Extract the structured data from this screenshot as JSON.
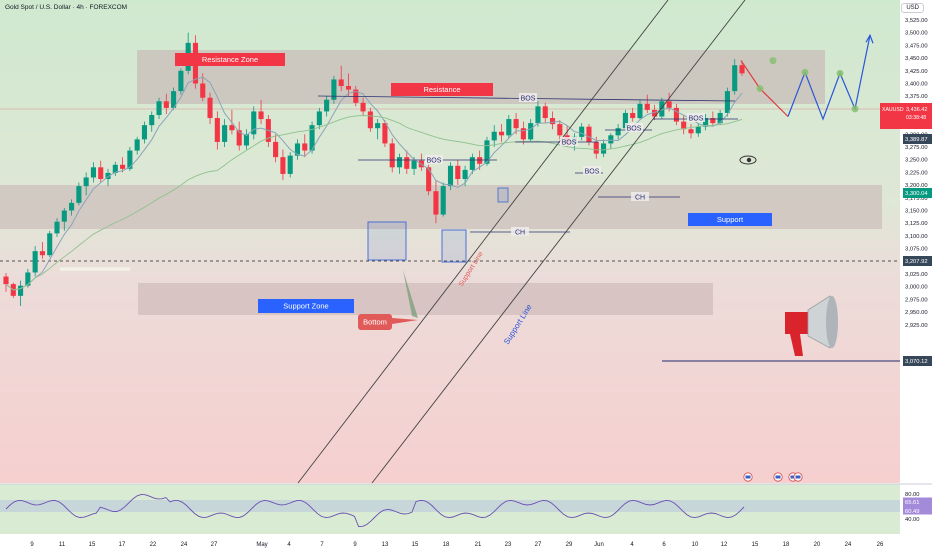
{
  "header": {
    "title": "Gold Spot / U.S. Dollar · 4h · FOREXCOM",
    "currency": "USD"
  },
  "colors": {
    "up": "#089981",
    "down": "#f23645",
    "ma": "#8aa4b9",
    "ma_slow": "#8fc28f",
    "zone_fill": "#c7b2b2",
    "resistance_label": "#f23645",
    "support_label": "#2962ff",
    "box": "#3a67d6",
    "projection_red": "#e03b3b",
    "projection_blue": "#2a56d8",
    "marker_green": "#88c070",
    "channel": "#444444",
    "price_tag_dark": "#37475a",
    "price_tag_teal": "#089981",
    "price_tag_red": "#f23645"
  },
  "chart_data": {
    "type": "candlestick",
    "symbol": "XAUUSD",
    "timeframe": "4h",
    "y_axis": {
      "ticks": [
        3525,
        3500,
        3475,
        3450,
        3425,
        3400,
        3375,
        3350,
        3325,
        3300,
        3275,
        3250,
        3225,
        3200,
        3175,
        3150,
        3125,
        3100,
        3075,
        3050,
        3025,
        3000,
        2975,
        2950,
        2925
      ],
      "tick_labels": [
        "3,525.00",
        "3,500.00",
        "3,475.00",
        "3,450.00",
        "3,425.00",
        "3,400.00",
        "3,375.00",
        "3,350.00",
        "3,325.00",
        "3,300.00",
        "3,275.00",
        "3,250.00",
        "3,225.00",
        "3,200.00",
        "3,175.00",
        "3,150.00",
        "3,125.00",
        "3,100.00",
        "3,075.00",
        "3,050.00",
        "3,025.00",
        "3,000.00",
        "2,975.00",
        "2,950.00",
        "2,925.00"
      ]
    },
    "x_axis": {
      "labels": [
        "9",
        "11",
        "15",
        "17",
        "22",
        "24",
        "27",
        "May",
        "4",
        "7",
        "9",
        "13",
        "15",
        "18",
        "21",
        "23",
        "27",
        "29",
        "Jun",
        "4",
        "6",
        "10",
        "12",
        "15",
        "18",
        "20",
        "24",
        "26"
      ]
    },
    "ohlc": [
      [
        3020,
        3027,
        2990,
        3005
      ],
      [
        3005,
        3008,
        2978,
        2982
      ],
      [
        2982,
        3012,
        2962,
        3002
      ],
      [
        3002,
        3035,
        2998,
        3028
      ],
      [
        3028,
        3080,
        3020,
        3070
      ],
      [
        3070,
        3088,
        3055,
        3062
      ],
      [
        3062,
        3110,
        3058,
        3105
      ],
      [
        3105,
        3135,
        3098,
        3128
      ],
      [
        3128,
        3155,
        3110,
        3150
      ],
      [
        3150,
        3172,
        3140,
        3165
      ],
      [
        3165,
        3205,
        3160,
        3198
      ],
      [
        3198,
        3225,
        3180,
        3215
      ],
      [
        3215,
        3245,
        3205,
        3235
      ],
      [
        3235,
        3248,
        3205,
        3212
      ],
      [
        3212,
        3232,
        3198,
        3224
      ],
      [
        3224,
        3246,
        3218,
        3240
      ],
      [
        3240,
        3255,
        3225,
        3232
      ],
      [
        3232,
        3275,
        3228,
        3268
      ],
      [
        3268,
        3295,
        3260,
        3290
      ],
      [
        3290,
        3325,
        3282,
        3318
      ],
      [
        3318,
        3345,
        3305,
        3338
      ],
      [
        3338,
        3372,
        3330,
        3365
      ],
      [
        3365,
        3380,
        3340,
        3352
      ],
      [
        3352,
        3392,
        3348,
        3385
      ],
      [
        3385,
        3430,
        3378,
        3425
      ],
      [
        3425,
        3500,
        3418,
        3480
      ],
      [
        3480,
        3495,
        3390,
        3400
      ],
      [
        3400,
        3420,
        3365,
        3372
      ],
      [
        3372,
        3382,
        3320,
        3332
      ],
      [
        3332,
        3345,
        3270,
        3285
      ],
      [
        3285,
        3330,
        3275,
        3318
      ],
      [
        3318,
        3348,
        3300,
        3308
      ],
      [
        3308,
        3325,
        3268,
        3278
      ],
      [
        3278,
        3310,
        3270,
        3300
      ],
      [
        3300,
        3355,
        3290,
        3345
      ],
      [
        3345,
        3368,
        3320,
        3330
      ],
      [
        3330,
        3338,
        3275,
        3285
      ],
      [
        3285,
        3300,
        3245,
        3255
      ],
      [
        3255,
        3270,
        3210,
        3222
      ],
      [
        3222,
        3265,
        3215,
        3258
      ],
      [
        3258,
        3290,
        3250,
        3282
      ],
      [
        3282,
        3300,
        3255,
        3268
      ],
      [
        3268,
        3325,
        3262,
        3318
      ],
      [
        3318,
        3352,
        3310,
        3345
      ],
      [
        3345,
        3375,
        3335,
        3368
      ],
      [
        3368,
        3415,
        3360,
        3408
      ],
      [
        3408,
        3435,
        3385,
        3395
      ],
      [
        3395,
        3420,
        3375,
        3388
      ],
      [
        3388,
        3395,
        3355,
        3362
      ],
      [
        3362,
        3372,
        3338,
        3345
      ],
      [
        3345,
        3352,
        3305,
        3312
      ],
      [
        3312,
        3330,
        3290,
        3322
      ],
      [
        3322,
        3328,
        3275,
        3282
      ],
      [
        3282,
        3292,
        3225,
        3235
      ],
      [
        3235,
        3262,
        3222,
        3255
      ],
      [
        3255,
        3268,
        3222,
        3232
      ],
      [
        3232,
        3255,
        3220,
        3248
      ],
      [
        3248,
        3262,
        3228,
        3235
      ],
      [
        3235,
        3240,
        3180,
        3188
      ],
      [
        3188,
        3210,
        3125,
        3142
      ],
      [
        3142,
        3205,
        3138,
        3198
      ],
      [
        3198,
        3245,
        3190,
        3238
      ],
      [
        3238,
        3250,
        3200,
        3212
      ],
      [
        3212,
        3238,
        3198,
        3230
      ],
      [
        3230,
        3262,
        3222,
        3255
      ],
      [
        3255,
        3268,
        3230,
        3242
      ],
      [
        3242,
        3295,
        3238,
        3288
      ],
      [
        3288,
        3318,
        3275,
        3305
      ],
      [
        3305,
        3320,
        3285,
        3298
      ],
      [
        3298,
        3338,
        3292,
        3330
      ],
      [
        3330,
        3342,
        3300,
        3312
      ],
      [
        3312,
        3325,
        3280,
        3290
      ],
      [
        3290,
        3330,
        3285,
        3322
      ],
      [
        3322,
        3365,
        3315,
        3355
      ],
      [
        3355,
        3362,
        3322,
        3332
      ],
      [
        3332,
        3345,
        3310,
        3320
      ],
      [
        3320,
        3328,
        3290,
        3298
      ],
      [
        3298,
        3318,
        3275,
        3282
      ],
      [
        3282,
        3302,
        3268,
        3295
      ],
      [
        3295,
        3322,
        3288,
        3315
      ],
      [
        3315,
        3320,
        3278,
        3285
      ],
      [
        3285,
        3295,
        3252,
        3262
      ],
      [
        3262,
        3290,
        3255,
        3282
      ],
      [
        3282,
        3302,
        3272,
        3298
      ],
      [
        3298,
        3320,
        3290,
        3312
      ],
      [
        3312,
        3348,
        3305,
        3342
      ],
      [
        3342,
        3352,
        3325,
        3332
      ],
      [
        3332,
        3368,
        3328,
        3360
      ],
      [
        3360,
        3378,
        3342,
        3348
      ],
      [
        3348,
        3358,
        3328,
        3335
      ],
      [
        3335,
        3372,
        3330,
        3365
      ],
      [
        3365,
        3382,
        3345,
        3352
      ],
      [
        3352,
        3360,
        3318,
        3325
      ],
      [
        3325,
        3338,
        3300,
        3310
      ],
      [
        3310,
        3320,
        3292,
        3302
      ],
      [
        3302,
        3322,
        3295,
        3315
      ],
      [
        3315,
        3340,
        3308,
        3332
      ],
      [
        3332,
        3345,
        3315,
        3322
      ],
      [
        3322,
        3348,
        3318,
        3342
      ],
      [
        3342,
        3392,
        3335,
        3385
      ],
      [
        3385,
        3448,
        3378,
        3436
      ],
      [
        3436,
        3445,
        3415,
        3420
      ]
    ],
    "annotations": {
      "zones": [
        "Resistance Zone",
        "Support Zone"
      ],
      "labels": [
        "Resistance Zone",
        "Resistance",
        "Support Zone",
        "Support",
        "Bottom",
        "Support Line",
        "Support Line"
      ],
      "structure": [
        "BOS",
        "BOS",
        "BOS",
        "BOS",
        "BOS",
        "BOS",
        "CH",
        "CH"
      ],
      "projection_points": [
        3445,
        3390,
        3335,
        3422,
        3330,
        3420,
        3350,
        3495
      ]
    },
    "price_tags": [
      {
        "label": "XAUUSD",
        "value": "3,436.42",
        "sub": "03:38:48"
      },
      {
        "value": "3,389.87"
      },
      {
        "value": "3,300.04"
      },
      {
        "value": "3,207.92"
      },
      {
        "value": "3,070.12"
      }
    ],
    "indicator": {
      "name": "RSI",
      "ticks": [
        "80.00",
        "65.61",
        "60.49",
        "40.00"
      ]
    }
  }
}
